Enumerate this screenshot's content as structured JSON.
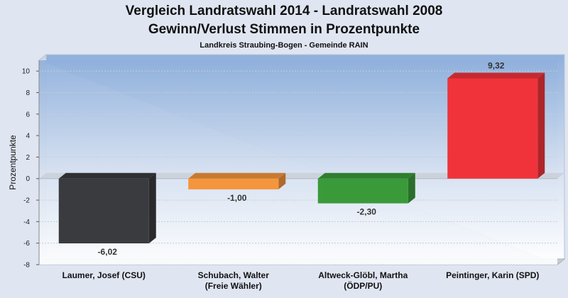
{
  "chart_data": {
    "type": "bar",
    "title_lines": [
      "Vergleich Landratswahl 2014 - Landratswahl 2008",
      "Gewinn/Verlust Stimmen in Prozentpunkte"
    ],
    "subtitle": "Landkreis Straubing-Bogen - Gemeinde RAIN",
    "ylabel": "Prozentpunkte",
    "xlabel": "",
    "ylim": [
      -8,
      11
    ],
    "yticks": [
      -8,
      -6,
      -4,
      -2,
      0,
      2,
      4,
      6,
      8,
      10
    ],
    "categories": [
      [
        "Laumer, Josef (CSU)"
      ],
      [
        "Schubach, Walter",
        "(Freie Wähler)"
      ],
      [
        "Altweck-Glöbl, Martha",
        "(ÖDP/PU)"
      ],
      [
        "Peintinger, Karin (SPD)"
      ]
    ],
    "values": [
      -6.02,
      -1.0,
      -2.3,
      9.32
    ],
    "value_labels": [
      "-6,02",
      "-1,00",
      "-2,30",
      "9,32"
    ],
    "colors": [
      "#3a3b3f",
      "#f5953c",
      "#3a9a3a",
      "#f0333a"
    ],
    "grid": true,
    "legend": "none"
  }
}
